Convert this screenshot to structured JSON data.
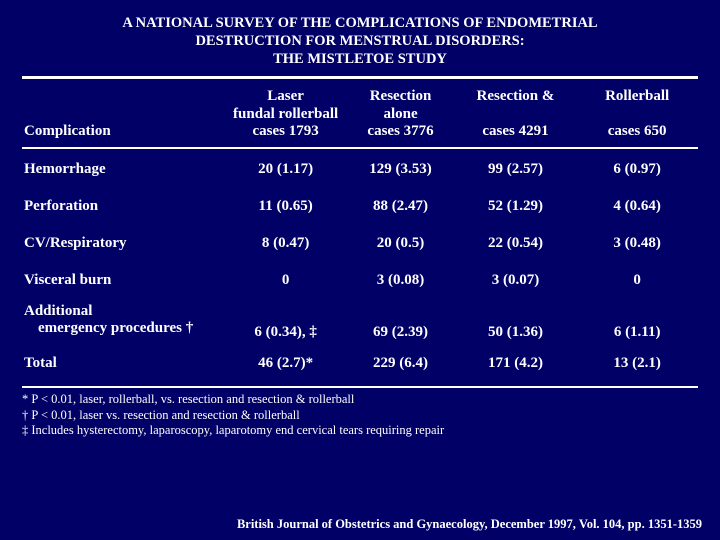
{
  "title_l1": "A NATIONAL SURVEY OF THE COMPLICATIONS OF ENDOMETRIAL",
  "title_l2": "DESTRUCTION FOR MENSTRUAL DISORDERS:",
  "title_l3": "THE MISTLETOE STUDY",
  "head": {
    "rowlabel": "Complication",
    "c1_l1": "Laser",
    "c1_l2": "fundal rollerball",
    "c1_l3": "cases 1793",
    "c2_l1": "Resection",
    "c2_l2": "alone",
    "c2_l3": "cases 3776",
    "c3_l1": "Resection &",
    "c3_l2": "",
    "c3_l3": "cases 4291",
    "c4_l1": "Rollerball",
    "c4_l2": "",
    "c4_l3": "cases 650"
  },
  "r1": {
    "label": "Hemorrhage",
    "c1": "20 (1.17)",
    "c2": "129 (3.53)",
    "c3": "99 (2.57)",
    "c4": "6 (0.97)"
  },
  "r2": {
    "label": "Perforation",
    "c1": "11 (0.65)",
    "c2": "88 (2.47)",
    "c3": "52 (1.29)",
    "c4": "4 (0.64)"
  },
  "r3": {
    "label": "CV/Respiratory",
    "c1": "8 (0.47)",
    "c2": "20 (0.5)",
    "c3": "22 (0.54)",
    "c4": "3 (0.48)"
  },
  "r4": {
    "label": "Visceral burn",
    "c1": "0",
    "c2": "3 (0.08)",
    "c3": "3 (0.07)",
    "c4": "0"
  },
  "r5": {
    "label_l1": "Additional",
    "label_l2": "emergency procedures †",
    "c1": "6 (0.34), ‡",
    "c2": "69 (2.39)",
    "c3": "50 (1.36)",
    "c4": "6 (1.11)"
  },
  "r6": {
    "label": "Total",
    "c1": "46 (2.7)*",
    "c2": "229 (6.4)",
    "c3": "171 (4.2)",
    "c4": "13 (2.1)"
  },
  "fn1": "* P < 0.01, laser, rollerball, vs. resection and resection & rollerball",
  "fn2": "† P < 0.01, laser vs. resection and resection & rollerball",
  "fn3": "‡ Includes hysterectomy, laparoscopy, laparotomy end cervical tears requiring repair",
  "citation": "British Journal of Obstetrics and Gynaecology, December 1997, Vol. 104, pp. 1351-1359"
}
